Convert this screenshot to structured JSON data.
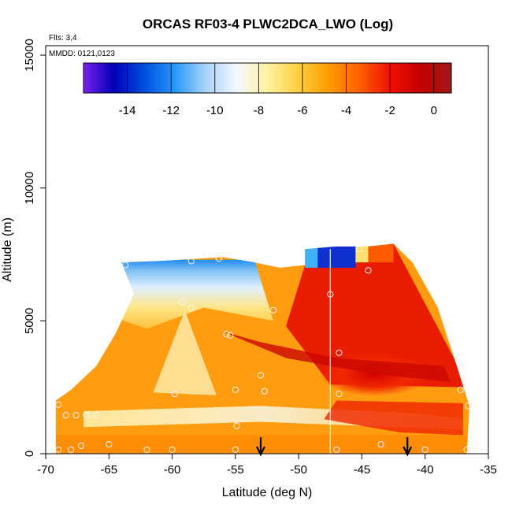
{
  "chart_data": {
    "type": "heatmap",
    "title": "ORCAS RF03-4 PLWC2DCA_LWO (Log)",
    "annotations": {
      "flights": "Flts: 3,4",
      "dates": "MMDD: 0121,0123"
    },
    "xlabel": "Latitude (deg N)",
    "ylabel": "Altitude (m)",
    "xlim": [
      -70,
      -35
    ],
    "ylim": [
      0,
      15000
    ],
    "x_ticks": [
      -70,
      -65,
      -60,
      -55,
      -50,
      -45,
      -40,
      -35
    ],
    "x_tick_labels": [
      "-70",
      "-65",
      "-60",
      "-55",
      "-50",
      "-45",
      "-40",
      "-35"
    ],
    "y_ticks": [
      0,
      5000,
      10000,
      15000
    ],
    "y_tick_labels": [
      "0",
      "5000",
      "10000",
      "15000"
    ],
    "colorbar": {
      "range": [
        -16,
        0.8
      ],
      "ticks": [
        -14,
        -12,
        -10,
        -8,
        -6,
        -4,
        -2,
        0
      ],
      "tick_labels": [
        "-14",
        "-12",
        "-10",
        "-8",
        "-6",
        "-4",
        "-2",
        "0"
      ],
      "colors": [
        "#7b20f0",
        "#0000b8",
        "#0050e0",
        "#2a9af8",
        "#a8d4fa",
        "#f4f8ff",
        "#fff2a0",
        "#ffd040",
        "#ff9a00",
        "#ff6000",
        "#f01000",
        "#c40000",
        "#a01818"
      ]
    },
    "region_outline": [
      [
        -69.2,
        0
      ],
      [
        -69.2,
        2000
      ],
      [
        -68,
        2400
      ],
      [
        -66,
        3300
      ],
      [
        -64.5,
        4500
      ],
      [
        -63,
        6000
      ],
      [
        -64,
        7200
      ],
      [
        -61,
        7250
      ],
      [
        -56,
        7400
      ],
      [
        -53.5,
        7200
      ],
      [
        -51.5,
        7000
      ],
      [
        -49.5,
        7100
      ],
      [
        -49.5,
        7700
      ],
      [
        -47,
        7800
      ],
      [
        -44.5,
        7800
      ],
      [
        -42.5,
        7900
      ],
      [
        -41,
        7200
      ],
      [
        -39,
        5500
      ],
      [
        -37.5,
        3300
      ],
      [
        -36.5,
        1800
      ],
      [
        -36.7,
        0
      ]
    ],
    "flight_track_markers": [
      [
        -69.0,
        1850
      ],
      [
        -68.4,
        1450
      ],
      [
        -67.6,
        1450
      ],
      [
        -66.8,
        1450
      ],
      [
        -66.0,
        1450
      ],
      [
        -69.0,
        150
      ],
      [
        -68.0,
        150
      ],
      [
        -67.2,
        300
      ],
      [
        -65.0,
        350
      ],
      [
        -62.0,
        150
      ],
      [
        -60.0,
        150
      ],
      [
        -55.0,
        150
      ],
      [
        -47.0,
        150
      ],
      [
        -43.5,
        350
      ],
      [
        -40.0,
        150
      ],
      [
        -36.7,
        150
      ],
      [
        -36.6,
        1800
      ],
      [
        -37.2,
        2400
      ],
      [
        -46.8,
        2250
      ],
      [
        -46.8,
        3800
      ],
      [
        -53.0,
        2950
      ],
      [
        -52.7,
        2350
      ],
      [
        -55.0,
        2400
      ],
      [
        -59.8,
        2250
      ],
      [
        -55.7,
        4500
      ],
      [
        -55.4,
        4450
      ],
      [
        -58.5,
        5500
      ],
      [
        -59.2,
        5700
      ],
      [
        -52.0,
        5400
      ],
      [
        -47.5,
        6000
      ],
      [
        -44.5,
        6900
      ],
      [
        -45.2,
        7700
      ],
      [
        -56.3,
        7350
      ],
      [
        -58.5,
        7250
      ],
      [
        -63.7,
        7100
      ],
      [
        -54.9,
        1050
      ]
    ],
    "vertical_line_x": -47.5,
    "arrow_markers_x": [
      -53.0,
      -41.4
    ]
  }
}
